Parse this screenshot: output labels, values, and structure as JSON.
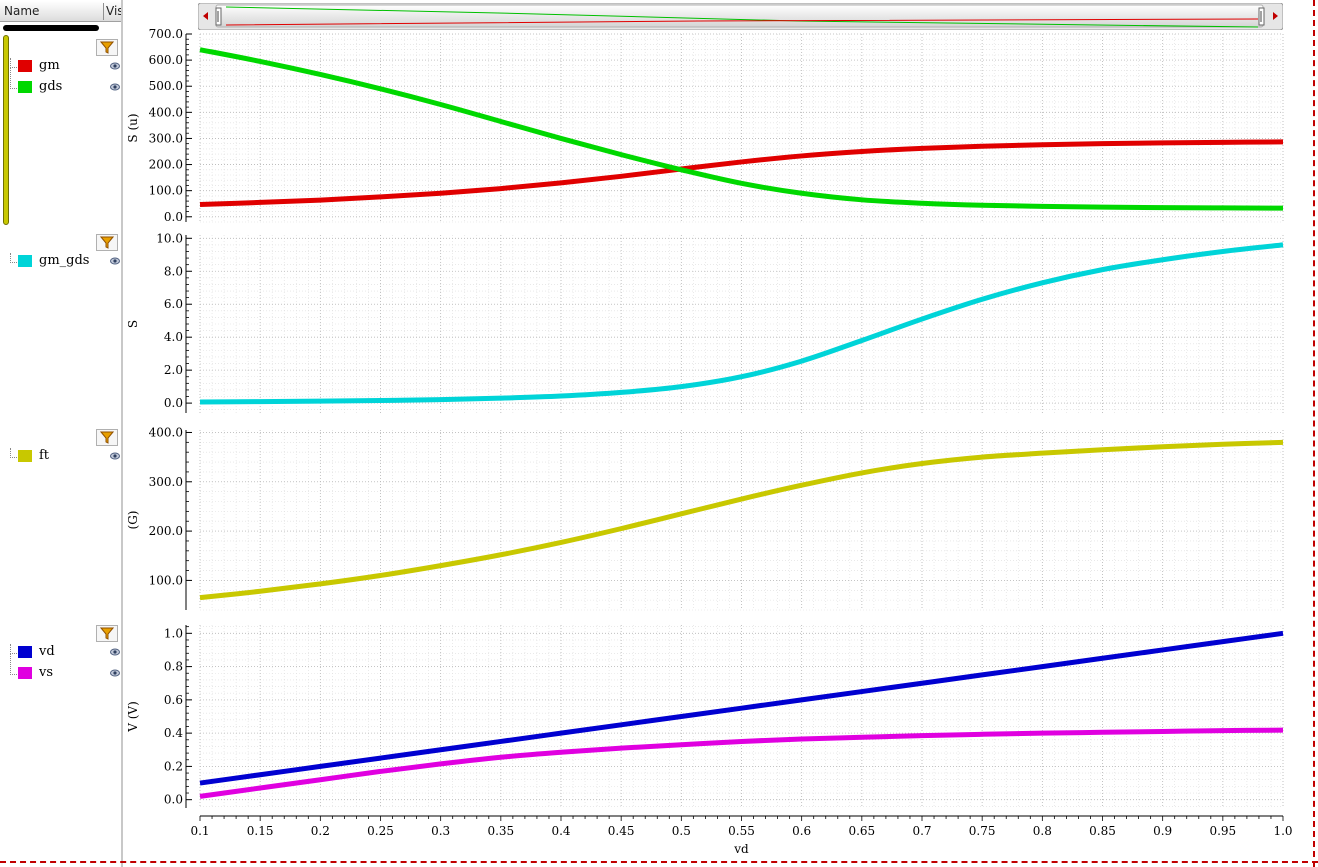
{
  "sidebar": {
    "col_name": "Name",
    "col_vis": "Vis",
    "groups": [
      {
        "items": [
          {
            "label": "gm",
            "color": "#e00000"
          },
          {
            "label": "gds",
            "color": "#00d800"
          }
        ]
      },
      {
        "items": [
          {
            "label": "gm_gds",
            "color": "#00d4d8"
          }
        ]
      },
      {
        "items": [
          {
            "label": "ft",
            "color": "#c8c800"
          }
        ]
      },
      {
        "items": [
          {
            "label": "vd",
            "color": "#0000d0"
          },
          {
            "label": "vs",
            "color": "#e000e0"
          }
        ]
      }
    ]
  },
  "chart_data": {
    "type": "line",
    "xlabel": "vd",
    "xlim": [
      0.1,
      1.0
    ],
    "xticks": [
      "0.1",
      "0.15",
      "0.2",
      "0.25",
      "0.3",
      "0.35",
      "0.4",
      "0.45",
      "0.5",
      "0.55",
      "0.6",
      "0.65",
      "0.7",
      "0.75",
      "0.8",
      "0.85",
      "0.9",
      "0.95",
      "1.0"
    ],
    "x": [
      0.1,
      0.15,
      0.2,
      0.25,
      0.3,
      0.35,
      0.4,
      0.45,
      0.5,
      0.55,
      0.6,
      0.65,
      0.7,
      0.75,
      0.8,
      0.85,
      0.9,
      0.95,
      1.0
    ],
    "grid": true,
    "panels": [
      {
        "ylabel": "S (u)",
        "ylim": [
          -20,
          700
        ],
        "yticks": [
          0,
          100,
          200,
          300,
          400,
          500,
          600,
          700
        ],
        "ytick_labels": [
          "0.0",
          "100.0",
          "200.0",
          "300.0",
          "400.0",
          "500.0",
          "600.0",
          "700.0"
        ],
        "series": [
          {
            "name": "gm",
            "color": "#e00000",
            "values": [
              47,
              55,
              64,
              76,
              90,
              108,
              130,
              155,
              183,
              210,
              233,
              250,
              262,
              270,
              276,
              280,
              283,
              285,
              287
            ]
          },
          {
            "name": "gds",
            "color": "#00d800",
            "values": [
              640,
              595,
              545,
              490,
              430,
              365,
              300,
              238,
              180,
              128,
              90,
              65,
              52,
              44,
              40,
              37,
              35,
              34,
              33
            ]
          }
        ]
      },
      {
        "ylabel": "S",
        "ylim": [
          -0.6,
          10.2
        ],
        "yticks": [
          0,
          2,
          4,
          6,
          8,
          10
        ],
        "ytick_labels": [
          "0.0",
          "2.0",
          "4.0",
          "6.0",
          "8.0",
          "10.0"
        ],
        "series": [
          {
            "name": "gm_gds",
            "color": "#00d4d8",
            "values": [
              0.07,
              0.09,
              0.12,
              0.16,
              0.21,
              0.3,
              0.43,
              0.65,
              1.0,
              1.6,
              2.55,
              3.8,
              5.1,
              6.3,
              7.3,
              8.1,
              8.7,
              9.2,
              9.6
            ]
          }
        ]
      },
      {
        "ylabel": "(G)",
        "ylim": [
          40,
          405
        ],
        "yticks": [
          100,
          200,
          300,
          400
        ],
        "ytick_labels": [
          "100.0",
          "200.0",
          "300.0",
          "400.0"
        ],
        "series": [
          {
            "name": "ft",
            "color": "#c8c800",
            "values": [
              65,
              78,
              93,
              110,
              130,
              152,
              177,
              205,
              235,
              265,
              293,
              318,
              337,
              350,
              358,
              365,
              371,
              376,
              380
            ]
          }
        ]
      },
      {
        "ylabel": "V (V)",
        "ylim": [
          -0.05,
          1.05
        ],
        "yticks": [
          0,
          0.2,
          0.4,
          0.6,
          0.8,
          1.0
        ],
        "ytick_labels": [
          "0.0",
          "0.2",
          "0.4",
          "0.6",
          "0.8",
          "1.0"
        ],
        "series": [
          {
            "name": "vd",
            "color": "#0000d0",
            "values": [
              0.1,
              0.15,
              0.2,
              0.25,
              0.3,
              0.35,
              0.4,
              0.45,
              0.5,
              0.55,
              0.6,
              0.65,
              0.7,
              0.75,
              0.8,
              0.85,
              0.9,
              0.95,
              1.0
            ]
          },
          {
            "name": "vs",
            "color": "#e000e0",
            "values": [
              0.02,
              0.07,
              0.12,
              0.17,
              0.215,
              0.255,
              0.285,
              0.31,
              0.33,
              0.35,
              0.365,
              0.375,
              0.385,
              0.393,
              0.4,
              0.405,
              0.41,
              0.415,
              0.418
            ]
          }
        ]
      }
    ]
  }
}
